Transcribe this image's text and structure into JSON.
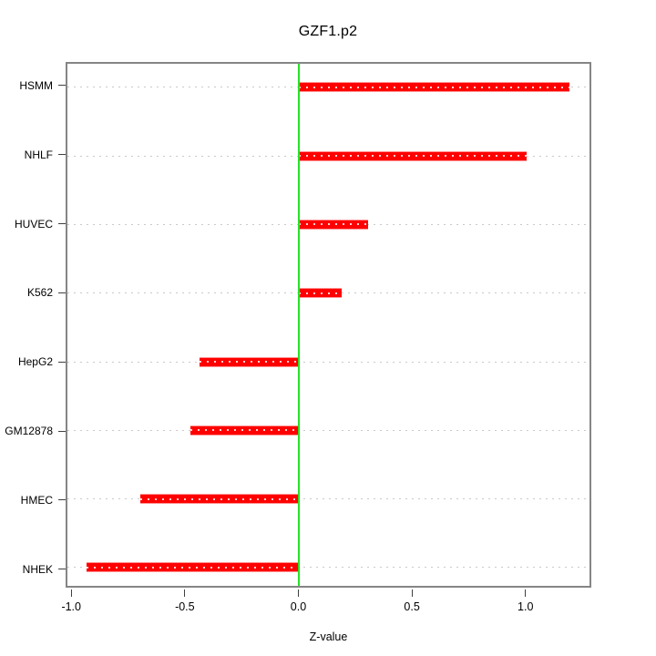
{
  "chart_data": {
    "type": "bar",
    "orientation": "horizontal",
    "title": "GZF1.p2",
    "xlabel": "Z-value",
    "categories": [
      "HSMM",
      "NHLF",
      "HUVEC",
      "K562",
      "HepG2",
      "GM12878",
      "HMEC",
      "NHEK"
    ],
    "values": [
      1.2,
      1.01,
      0.31,
      0.19,
      -0.44,
      -0.48,
      -0.7,
      -0.94
    ],
    "xlim": [
      -1.025,
      1.29
    ],
    "x_ticks": [
      -1.0,
      -0.5,
      0.0,
      0.5,
      1.0
    ],
    "x_tick_labels": [
      "-1.0",
      "-0.5",
      "0.0",
      "0.5",
      "1.0"
    ],
    "zero_line_x": 0,
    "grid": true,
    "legend": "none",
    "colors": {
      "bar": "#ff0000",
      "bar_edge": "#ff9090",
      "bar_dots": "#ffd2d2",
      "zero_line": "#24e324",
      "grid": "#c9c9c9",
      "axis_box": "#858585",
      "tick": "#404040",
      "text": "#000000"
    }
  }
}
